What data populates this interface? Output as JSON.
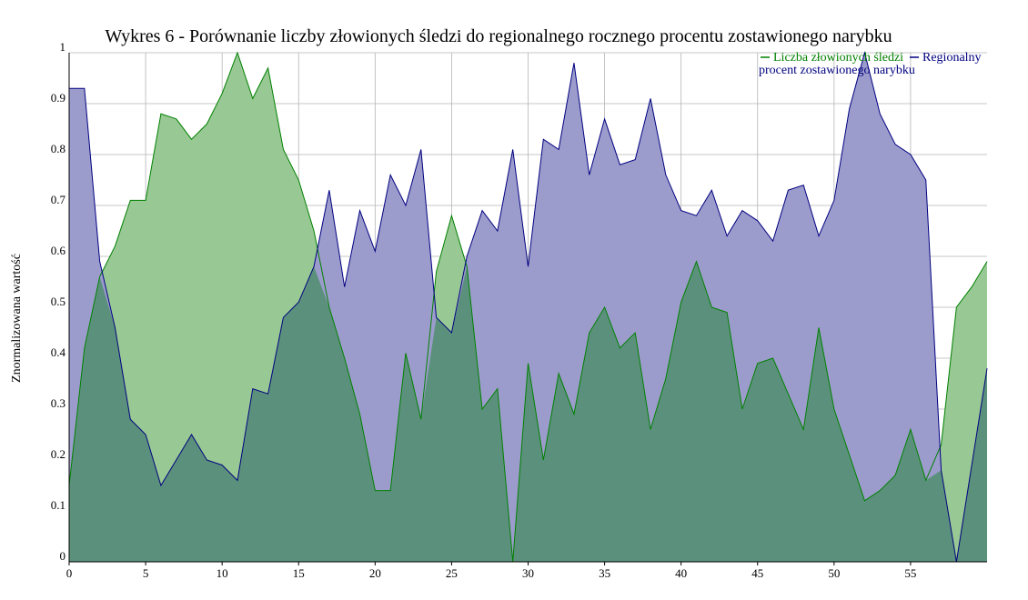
{
  "chart_data": {
    "type": "area",
    "title": "Wykres 6 - Porównanie liczby złowionych śledzi do regionalnego rocznego procentu zostawionego narybku",
    "xlabel": "",
    "ylabel": "Znormalizowana wartość",
    "xlim": [
      0,
      60
    ],
    "ylim": [
      0,
      1
    ],
    "x_ticks": [
      0,
      5,
      10,
      15,
      20,
      25,
      30,
      35,
      40,
      45,
      50,
      55
    ],
    "y_ticks": [
      0,
      0.1,
      0.2,
      0.3,
      0.4,
      0.5,
      0.6,
      0.7,
      0.8,
      0.9,
      1
    ],
    "y_tick_labels": [
      "0",
      "0.1",
      "0.2",
      "0.3",
      "0.4",
      "0.5",
      "0.6",
      "0.7",
      "0.8",
      "0.9",
      "1"
    ],
    "grid": true,
    "legend_position": "top-right",
    "x": [
      0,
      1,
      2,
      3,
      4,
      5,
      6,
      7,
      8,
      9,
      10,
      11,
      12,
      13,
      14,
      15,
      16,
      17,
      18,
      19,
      20,
      21,
      22,
      23,
      24,
      25,
      26,
      27,
      28,
      29,
      30,
      31,
      32,
      33,
      34,
      35,
      36,
      37,
      38,
      39,
      40,
      41,
      42,
      43,
      44,
      45,
      46,
      47,
      48,
      49,
      50,
      51,
      52,
      53,
      54,
      55,
      56,
      57,
      58,
      59,
      60
    ],
    "series": [
      {
        "name": "Liczba złowionych śledzi",
        "color": "#008000",
        "fill": "#98c994",
        "values": [
          0.15,
          0.42,
          0.56,
          0.62,
          0.71,
          0.71,
          0.88,
          0.87,
          0.83,
          0.86,
          0.92,
          1.0,
          0.91,
          0.97,
          0.81,
          0.75,
          0.65,
          0.5,
          0.4,
          0.29,
          0.14,
          0.14,
          0.41,
          0.28,
          0.57,
          0.68,
          0.58,
          0.3,
          0.34,
          0.0,
          0.39,
          0.2,
          0.37,
          0.29,
          0.45,
          0.5,
          0.42,
          0.45,
          0.26,
          0.36,
          0.51,
          0.59,
          0.5,
          0.49,
          0.3,
          0.39,
          0.4,
          0.33,
          0.26,
          0.46,
          0.3,
          0.21,
          0.12,
          0.14,
          0.17,
          0.26,
          0.16,
          0.23,
          0.5,
          0.54,
          0.59
        ]
      },
      {
        "name": "Regionalny procent zostawionego narybku",
        "color": "#000080",
        "fill": "#9c9ccc",
        "values": [
          0.93,
          0.93,
          0.59,
          0.46,
          0.28,
          0.25,
          0.15,
          0.2,
          0.25,
          0.2,
          0.19,
          0.16,
          0.34,
          0.33,
          0.48,
          0.51,
          0.58,
          0.73,
          0.54,
          0.69,
          0.61,
          0.76,
          0.7,
          0.81,
          0.48,
          0.45,
          0.6,
          0.69,
          0.65,
          0.81,
          0.58,
          0.83,
          0.81,
          0.98,
          0.76,
          0.87,
          0.78,
          0.79,
          0.91,
          0.76,
          0.69,
          0.68,
          0.73,
          0.64,
          0.69,
          0.67,
          0.63,
          0.73,
          0.74,
          0.64,
          0.71,
          0.89,
          1.0,
          0.88,
          0.82,
          0.8,
          0.75,
          0.18,
          0.0,
          0.19,
          0.38
        ]
      }
    ],
    "overlap_fill": "#5b917c"
  }
}
